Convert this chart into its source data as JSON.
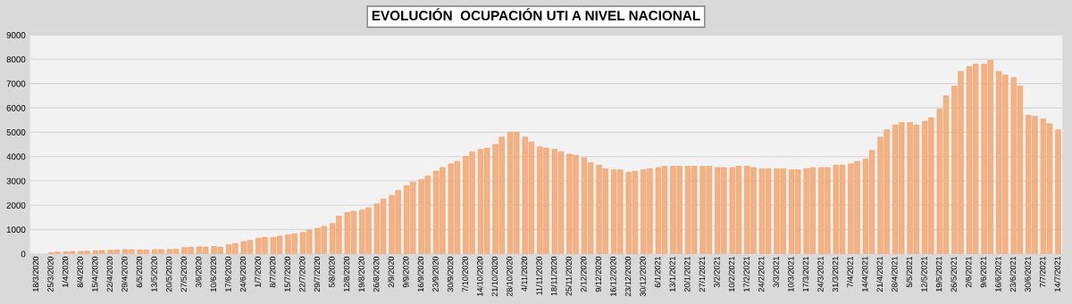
{
  "chart_data": {
    "type": "bar",
    "title": "EVOLUCIÓN  OCUPACIÓN UTI A NIVEL NACIONAL",
    "x": [
      "2020-03-25",
      "2020-03-28",
      "2020-04-01",
      "2020-04-04",
      "2020-04-08",
      "2020-04-11",
      "2020-04-15",
      "2020-04-18",
      "2020-04-22",
      "2020-04-25",
      "2020-04-29",
      "2020-05-02",
      "2020-05-06",
      "2020-05-09",
      "2020-05-13",
      "2020-05-16",
      "2020-05-20",
      "2020-05-23",
      "2020-05-27",
      "2020-05-30",
      "2020-06-03",
      "2020-06-06",
      "2020-06-10",
      "2020-06-13",
      "2020-06-17",
      "2020-06-20",
      "2020-06-24",
      "2020-06-27",
      "2020-07-01",
      "2020-07-04",
      "2020-07-08",
      "2020-07-11",
      "2020-07-15",
      "2020-07-18",
      "2020-07-22",
      "2020-07-25",
      "2020-07-29",
      "2020-08-01",
      "2020-08-05",
      "2020-08-08",
      "2020-08-12",
      "2020-08-15",
      "2020-08-19",
      "2020-08-22",
      "2020-08-26",
      "2020-08-29",
      "2020-09-02",
      "2020-09-05",
      "2020-09-09",
      "2020-09-12",
      "2020-09-16",
      "2020-09-19",
      "2020-09-23",
      "2020-09-26",
      "2020-09-30",
      "2020-10-03",
      "2020-10-07",
      "2020-10-10",
      "2020-10-14",
      "2020-10-17",
      "2020-10-21",
      "2020-10-24",
      "2020-10-28",
      "2020-10-31",
      "2020-11-04",
      "2020-11-07",
      "2020-11-11",
      "2020-11-14",
      "2020-11-18",
      "2020-11-21",
      "2020-11-25",
      "2020-11-28",
      "2020-12-02",
      "2020-12-05",
      "2020-12-09",
      "2020-12-12",
      "2020-12-16",
      "2020-12-19",
      "2020-12-23",
      "2020-12-26",
      "2020-12-30",
      "2021-01-02",
      "2021-01-06",
      "2021-01-09",
      "2021-01-13",
      "2021-01-16",
      "2021-01-20",
      "2021-01-23",
      "2021-01-27",
      "2021-01-30",
      "2021-02-03",
      "2021-02-06",
      "2021-02-10",
      "2021-02-13",
      "2021-02-17",
      "2021-02-20",
      "2021-02-24",
      "2021-02-27",
      "2021-03-03",
      "2021-03-06",
      "2021-03-10",
      "2021-03-13",
      "2021-03-17",
      "2021-03-20",
      "2021-03-24",
      "2021-03-27",
      "2021-03-31",
      "2021-04-03",
      "2021-04-07",
      "2021-04-10",
      "2021-04-14",
      "2021-04-17",
      "2021-04-21",
      "2021-04-24",
      "2021-04-28",
      "2021-05-01",
      "2021-05-05",
      "2021-05-08",
      "2021-05-12",
      "2021-05-15",
      "2021-05-19",
      "2021-05-22",
      "2021-05-26",
      "2021-05-29",
      "2021-06-02",
      "2021-06-05",
      "2021-06-09",
      "2021-06-12",
      "2021-06-16",
      "2021-06-19",
      "2021-06-23",
      "2021-06-26",
      "2021-06-30",
      "2021-07-03",
      "2021-07-07",
      "2021-07-10",
      "2021-07-14"
    ],
    "values": [
      50,
      70,
      90,
      100,
      100,
      110,
      130,
      140,
      150,
      160,
      170,
      170,
      160,
      160,
      170,
      170,
      180,
      190,
      260,
      270,
      290,
      280,
      300,
      270,
      380,
      420,
      500,
      560,
      640,
      680,
      680,
      730,
      780,
      820,
      880,
      980,
      1050,
      1130,
      1250,
      1550,
      1700,
      1750,
      1800,
      1900,
      2050,
      2250,
      2400,
      2600,
      2800,
      2950,
      3050,
      3200,
      3400,
      3550,
      3700,
      3800,
      4000,
      4200,
      4300,
      4350,
      4500,
      4800,
      5000,
      5000,
      4800,
      4600,
      4400,
      4350,
      4300,
      4200,
      4100,
      4050,
      3950,
      3750,
      3650,
      3500,
      3450,
      3450,
      3350,
      3400,
      3450,
      3500,
      3550,
      3600,
      3600,
      3600,
      3600,
      3600,
      3600,
      3600,
      3550,
      3550,
      3550,
      3600,
      3600,
      3550,
      3500,
      3500,
      3500,
      3500,
      3450,
      3450,
      3500,
      3550,
      3550,
      3550,
      3650,
      3650,
      3700,
      3800,
      3900,
      4250,
      4800,
      5100,
      5300,
      5400,
      5400,
      5300,
      5450,
      5600,
      5950,
      6500,
      6900,
      7500,
      7700,
      7800,
      7800,
      7950,
      7500,
      7350,
      7250,
      6900,
      5700,
      5650,
      5550,
      5350,
      5100
    ],
    "color": "#f4b183",
    "xlim": [
      "2020-03-15",
      "2021-07-16"
    ],
    "ylim": [
      0,
      9000
    ],
    "yticks": [
      0,
      1000,
      2000,
      3000,
      4000,
      5000,
      6000,
      7000,
      8000,
      9000
    ],
    "xticks": [
      {
        "value": "2020-03-18",
        "label": "18/3/2020"
      },
      {
        "value": "2020-03-25",
        "label": "25/3/2020"
      },
      {
        "value": "2020-04-01",
        "label": "1/4/2020"
      },
      {
        "value": "2020-04-08",
        "label": "8/4/2020"
      },
      {
        "value": "2020-04-15",
        "label": "15/4/2020"
      },
      {
        "value": "2020-04-22",
        "label": "22/4/2020"
      },
      {
        "value": "2020-04-29",
        "label": "29/4/2020"
      },
      {
        "value": "2020-05-06",
        "label": "6/5/2020"
      },
      {
        "value": "2020-05-13",
        "label": "13/5/2020"
      },
      {
        "value": "2020-05-20",
        "label": "20/5/2020"
      },
      {
        "value": "2020-05-27",
        "label": "27/5/2020"
      },
      {
        "value": "2020-06-03",
        "label": "3/6/2020"
      },
      {
        "value": "2020-06-10",
        "label": "10/6/2020"
      },
      {
        "value": "2020-06-17",
        "label": "17/6/2020"
      },
      {
        "value": "2020-06-24",
        "label": "24/6/2020"
      },
      {
        "value": "2020-07-01",
        "label": "1/7/2020"
      },
      {
        "value": "2020-07-08",
        "label": "8/7/2020"
      },
      {
        "value": "2020-07-15",
        "label": "15/7/2020"
      },
      {
        "value": "2020-07-22",
        "label": "22/7/2020"
      },
      {
        "value": "2020-07-29",
        "label": "29/7/2020"
      },
      {
        "value": "2020-08-05",
        "label": "5/8/2020"
      },
      {
        "value": "2020-08-12",
        "label": "12/8/2020"
      },
      {
        "value": "2020-08-19",
        "label": "19/8/2020"
      },
      {
        "value": "2020-08-26",
        "label": "26/8/2020"
      },
      {
        "value": "2020-09-02",
        "label": "2/9/2020"
      },
      {
        "value": "2020-09-09",
        "label": "9/9/2020"
      },
      {
        "value": "2020-09-16",
        "label": "16/9/2020"
      },
      {
        "value": "2020-09-23",
        "label": "23/9/2020"
      },
      {
        "value": "2020-09-30",
        "label": "30/9/2020"
      },
      {
        "value": "2020-10-07",
        "label": "7/10/2020"
      },
      {
        "value": "2020-10-14",
        "label": "14/10/2020"
      },
      {
        "value": "2020-10-21",
        "label": "21/10/2020"
      },
      {
        "value": "2020-10-28",
        "label": "28/10/2020"
      },
      {
        "value": "2020-11-04",
        "label": "4/11/2020"
      },
      {
        "value": "2020-11-11",
        "label": "11/11/2020"
      },
      {
        "value": "2020-11-18",
        "label": "18/11/2020"
      },
      {
        "value": "2020-11-25",
        "label": "25/11/2020"
      },
      {
        "value": "2020-12-02",
        "label": "2/12/2020"
      },
      {
        "value": "2020-12-09",
        "label": "9/12/2020"
      },
      {
        "value": "2020-12-16",
        "label": "16/12/2020"
      },
      {
        "value": "2020-12-23",
        "label": "23/12/2020"
      },
      {
        "value": "2020-12-30",
        "label": "30/12/2020"
      },
      {
        "value": "2021-01-06",
        "label": "6/1/2021"
      },
      {
        "value": "2021-01-13",
        "label": "13/1/2021"
      },
      {
        "value": "2021-01-20",
        "label": "20/1/2021"
      },
      {
        "value": "2021-01-27",
        "label": "27/1/2021"
      },
      {
        "value": "2021-02-03",
        "label": "3/2/2021"
      },
      {
        "value": "2021-02-10",
        "label": "10/2/2021"
      },
      {
        "value": "2021-02-17",
        "label": "17/2/2021"
      },
      {
        "value": "2021-02-24",
        "label": "24/2/2021"
      },
      {
        "value": "2021-03-03",
        "label": "3/3/2021"
      },
      {
        "value": "2021-03-10",
        "label": "10/3/2021"
      },
      {
        "value": "2021-03-17",
        "label": "17/3/2021"
      },
      {
        "value": "2021-03-24",
        "label": "24/3/2021"
      },
      {
        "value": "2021-03-31",
        "label": "31/3/2021"
      },
      {
        "value": "2021-04-07",
        "label": "7/4/2021"
      },
      {
        "value": "2021-04-14",
        "label": "14/4/2021"
      },
      {
        "value": "2021-04-21",
        "label": "21/4/2021"
      },
      {
        "value": "2021-04-28",
        "label": "28/4/2021"
      },
      {
        "value": "2021-05-05",
        "label": "5/5/2021"
      },
      {
        "value": "2021-05-12",
        "label": "12/5/2021"
      },
      {
        "value": "2021-05-19",
        "label": "19/5/2021"
      },
      {
        "value": "2021-05-26",
        "label": "26/5/2021"
      },
      {
        "value": "2021-06-02",
        "label": "2/6/2021"
      },
      {
        "value": "2021-06-09",
        "label": "9/6/2021"
      },
      {
        "value": "2021-06-16",
        "label": "16/6/2021"
      },
      {
        "value": "2021-06-23",
        "label": "23/6/2021"
      },
      {
        "value": "2021-06-30",
        "label": "30/6/2021"
      },
      {
        "value": "2021-07-07",
        "label": "7/7/2021"
      },
      {
        "value": "2021-07-14",
        "label": "14/7/2021"
      }
    ],
    "grid": "y"
  }
}
